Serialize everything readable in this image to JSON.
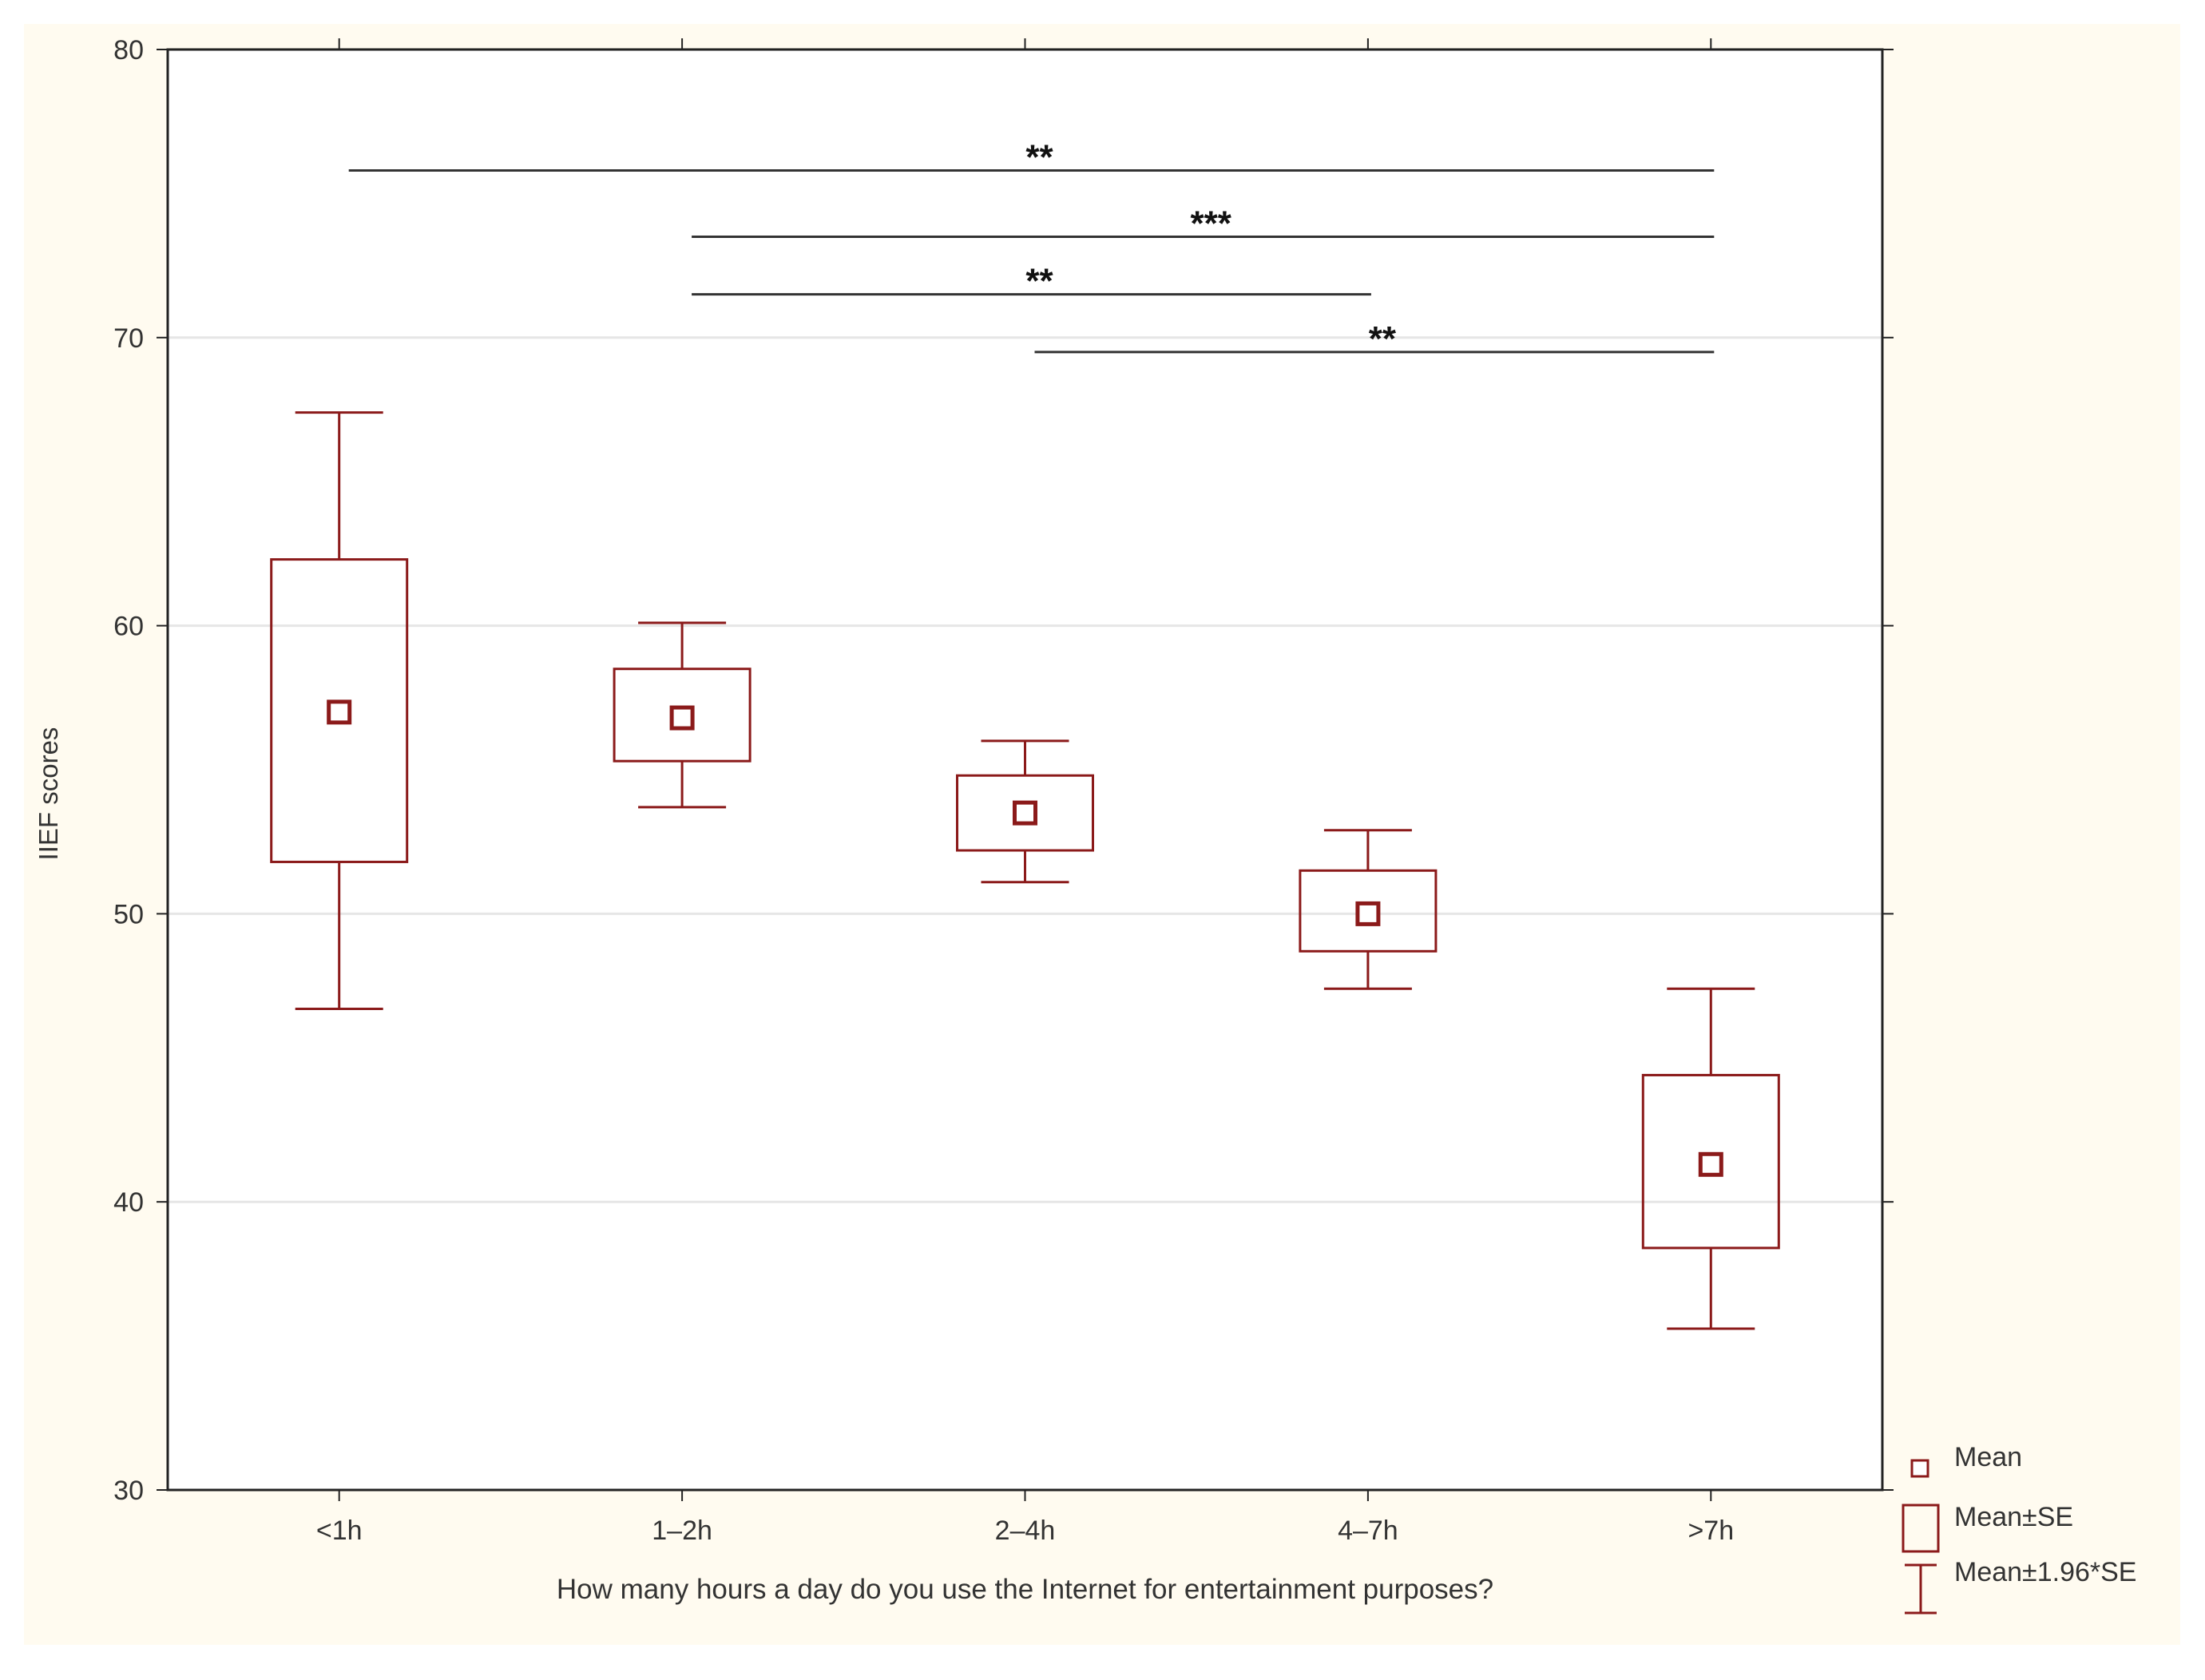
{
  "colors": {
    "background": "#fffbf0",
    "plot_bg": "#ffffff",
    "gridline": "#e6e6e6",
    "axis": "#222222",
    "series": "#8b1a1a",
    "text": "#333333",
    "bracket": "#333333",
    "star": "#111111"
  },
  "chart_data": {
    "type": "box",
    "title": "",
    "xlabel": "How many hours a day do you use the Internet for entertainment purposes?",
    "ylabel": "IIEF scores",
    "ylim": [
      30,
      80
    ],
    "yticks": [
      30,
      40,
      50,
      60,
      70,
      80
    ],
    "categories": [
      "<1h",
      "1–2h",
      "2–4h",
      "4–7h",
      ">7h"
    ],
    "series": [
      {
        "category": "<1h",
        "mean": 57.0,
        "se_low": 51.8,
        "se_high": 62.3,
        "ci_low": 46.7,
        "ci_high": 67.4
      },
      {
        "category": "1–2h",
        "mean": 56.8,
        "se_low": 55.3,
        "se_high": 58.5,
        "ci_low": 53.7,
        "ci_high": 60.1
      },
      {
        "category": "2–4h",
        "mean": 53.5,
        "se_low": 52.2,
        "se_high": 54.8,
        "ci_low": 51.1,
        "ci_high": 56.0
      },
      {
        "category": "4–7h",
        "mean": 50.0,
        "se_low": 48.7,
        "se_high": 51.5,
        "ci_low": 47.4,
        "ci_high": 52.9
      },
      {
        "category": ">7h",
        "mean": 41.3,
        "se_low": 38.4,
        "se_high": 44.4,
        "ci_low": 35.6,
        "ci_high": 47.4
      }
    ],
    "significance": [
      {
        "from": 0,
        "to": 4,
        "y": 75.8,
        "label": "**"
      },
      {
        "from": 1,
        "to": 4,
        "y": 73.5,
        "label": "***"
      },
      {
        "from": 1,
        "to": 3,
        "y": 71.5,
        "label": "**"
      },
      {
        "from": 2,
        "to": 4,
        "y": 69.5,
        "label": "**"
      }
    ],
    "legend": {
      "position": "bottom-right",
      "items": [
        {
          "symbol": "mean-marker",
          "label": "Mean"
        },
        {
          "symbol": "se-box",
          "label": "Mean±SE"
        },
        {
          "symbol": "ci-whisker",
          "label": "Mean±1.96*SE"
        }
      ]
    }
  }
}
